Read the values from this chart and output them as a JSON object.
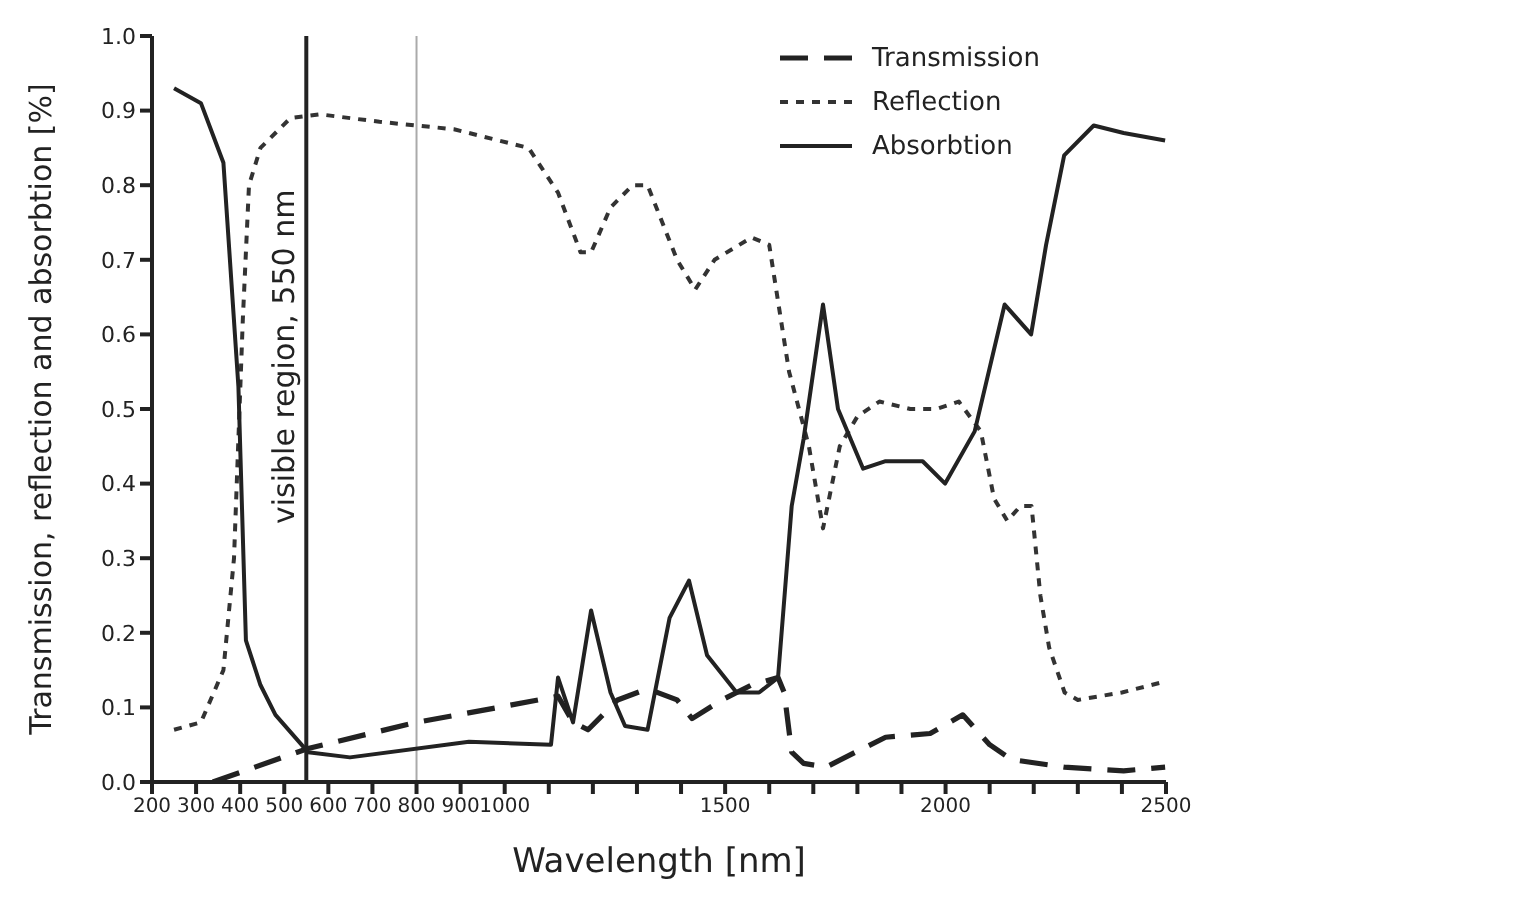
{
  "chart_data": {
    "type": "line",
    "xlabel": "Wavelength [nm]",
    "ylabel": "Transmission, reflection and absorbtion [%]",
    "xlim": [
      200,
      2500
    ],
    "xticks": [
      200,
      300,
      400,
      500,
      600,
      700,
      800,
      900,
      1000,
      {
        "value": 1100,
        "label": null
      },
      {
        "value": 1200,
        "label": null
      },
      {
        "value": 1300,
        "label": null
      },
      {
        "value": 1400,
        "label": null
      },
      1500,
      {
        "value": 1600,
        "label": null
      },
      {
        "value": 1700,
        "label": null
      },
      {
        "value": 1800,
        "label": null
      },
      {
        "value": 1900,
        "label": null
      },
      2000,
      {
        "value": 2100,
        "label": null
      },
      {
        "value": 2200,
        "label": null
      },
      {
        "value": 2300,
        "label": null
      },
      {
        "value": 2400,
        "label": null
      },
      2500
    ],
    "ylim": [
      0,
      1
    ],
    "yticks": [
      {
        "value": 0,
        "label": "0.0"
      },
      {
        "value": 0.1,
        "label": "0.1"
      },
      {
        "value": 0.2,
        "label": "0.2"
      },
      {
        "value": 0.3,
        "label": "0.3"
      },
      {
        "value": 0.4,
        "label": "0.4"
      },
      {
        "value": 0.5,
        "label": "0.5"
      },
      {
        "value": 0.6,
        "label": "0.6"
      },
      {
        "value": 0.7,
        "label": "0.7"
      },
      {
        "value": 0.8,
        "label": "0.8"
      },
      {
        "value": 0.9,
        "label": "0.9"
      },
      {
        "value": 1,
        "label": "1.0"
      }
    ],
    "grid": false,
    "legend": "top right",
    "marker": "none",
    "ref_lines": [
      {
        "axis": "x",
        "value": 550,
        "label": "visible region, 550 nm",
        "color": "#222222",
        "line_style": "solid"
      },
      {
        "axis": "x",
        "value": 800,
        "label": null,
        "color": "#aaaaaa",
        "line_style": "solid"
      }
    ],
    "series": [
      {
        "name": "Transmission",
        "color": "#222222",
        "line_style": "dashed",
        "x": [
          338,
          554,
          800,
          986,
          1121,
          1155,
          1189,
          1256,
          1324,
          1391,
          1425,
          1493,
          1560,
          1620,
          1634,
          1651,
          1678,
          1729,
          1796,
          1864,
          1965,
          2039,
          2100,
          2150,
          2269,
          2404,
          2498
        ],
        "values": [
          0,
          0.045,
          0.08,
          0.1,
          0.115,
          0.08,
          0.07,
          0.11,
          0.125,
          0.11,
          0.085,
          0.11,
          0.13,
          0.14,
          0.12,
          0.04,
          0.025,
          0.02,
          0.04,
          0.06,
          0.065,
          0.09,
          0.05,
          0.03,
          0.02,
          0.015,
          0.02
        ]
      },
      {
        "name": "Reflection",
        "color": "#333333",
        "line_style": "dotted",
        "x": [
          250,
          311,
          362,
          386,
          406,
          420,
          446,
          514,
          581,
          716,
          800,
          885,
          986,
          1054,
          1121,
          1172,
          1196,
          1240,
          1290,
          1324,
          1391,
          1432,
          1476,
          1560,
          1600,
          1645,
          1690,
          1722,
          1760,
          1800,
          1850,
          1920,
          1980,
          2030,
          2080,
          2110,
          2140,
          2170,
          2195,
          2215,
          2235,
          2270,
          2300,
          2400,
          2500
        ],
        "values": [
          0.07,
          0.08,
          0.15,
          0.3,
          0.62,
          0.8,
          0.85,
          0.89,
          0.895,
          0.885,
          0.88,
          0.875,
          0.86,
          0.85,
          0.79,
          0.71,
          0.71,
          0.77,
          0.8,
          0.8,
          0.7,
          0.66,
          0.7,
          0.73,
          0.72,
          0.55,
          0.45,
          0.34,
          0.45,
          0.49,
          0.51,
          0.5,
          0.5,
          0.51,
          0.47,
          0.38,
          0.35,
          0.37,
          0.37,
          0.25,
          0.18,
          0.12,
          0.11,
          0.12,
          0.135
        ]
      },
      {
        "name": "Absorbtion",
        "color": "#222222",
        "line_style": "solid",
        "x": [
          250,
          311,
          362,
          396,
          413,
          446,
          480,
          554,
          649,
          919,
          1105,
          1121,
          1155,
          1196,
          1240,
          1273,
          1324,
          1374,
          1418,
          1459,
          1526,
          1577,
          1620,
          1651,
          1678,
          1722,
          1756,
          1813,
          1864,
          1948,
          1999,
          2066,
          2134,
          2194,
          2228,
          2269,
          2336,
          2404,
          2498
        ],
        "values": [
          0.93,
          0.91,
          0.83,
          0.53,
          0.19,
          0.13,
          0.09,
          0.04,
          0.033,
          0.054,
          0.05,
          0.14,
          0.08,
          0.23,
          0.12,
          0.075,
          0.07,
          0.22,
          0.27,
          0.17,
          0.12,
          0.12,
          0.14,
          0.37,
          0.46,
          0.64,
          0.5,
          0.42,
          0.43,
          0.43,
          0.4,
          0.47,
          0.64,
          0.6,
          0.72,
          0.84,
          0.88,
          0.87,
          0.86
        ]
      }
    ]
  }
}
